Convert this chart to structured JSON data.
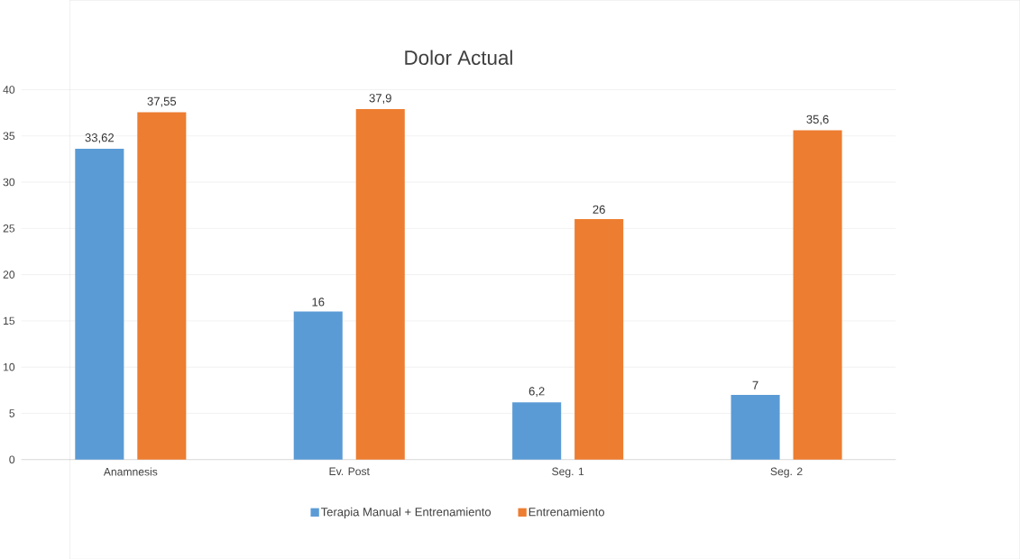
{
  "chart_data": {
    "type": "bar",
    "title": "Dolor Actual",
    "categories": [
      "Anamnesis",
      "Ev. Post",
      "Seg. 1",
      "Seg. 2"
    ],
    "series": [
      {
        "name": "Terapia Manual + Entrenamiento",
        "color": "#5b9bd5",
        "values": [
          33.62,
          16,
          6.2,
          7
        ],
        "value_labels": [
          "33,62",
          "16",
          "6,2",
          "7"
        ]
      },
      {
        "name": "Entrenamiento",
        "color": "#ed7d31",
        "values": [
          37.55,
          37.9,
          26,
          35.6
        ],
        "value_labels": [
          "37,55",
          "37,9",
          "26",
          "35,6"
        ]
      }
    ],
    "ylim": [
      0,
      40
    ],
    "yticks": [
      0,
      5,
      10,
      15,
      20,
      25,
      30,
      35,
      40
    ],
    "grid": "y",
    "legend": "bottom"
  }
}
